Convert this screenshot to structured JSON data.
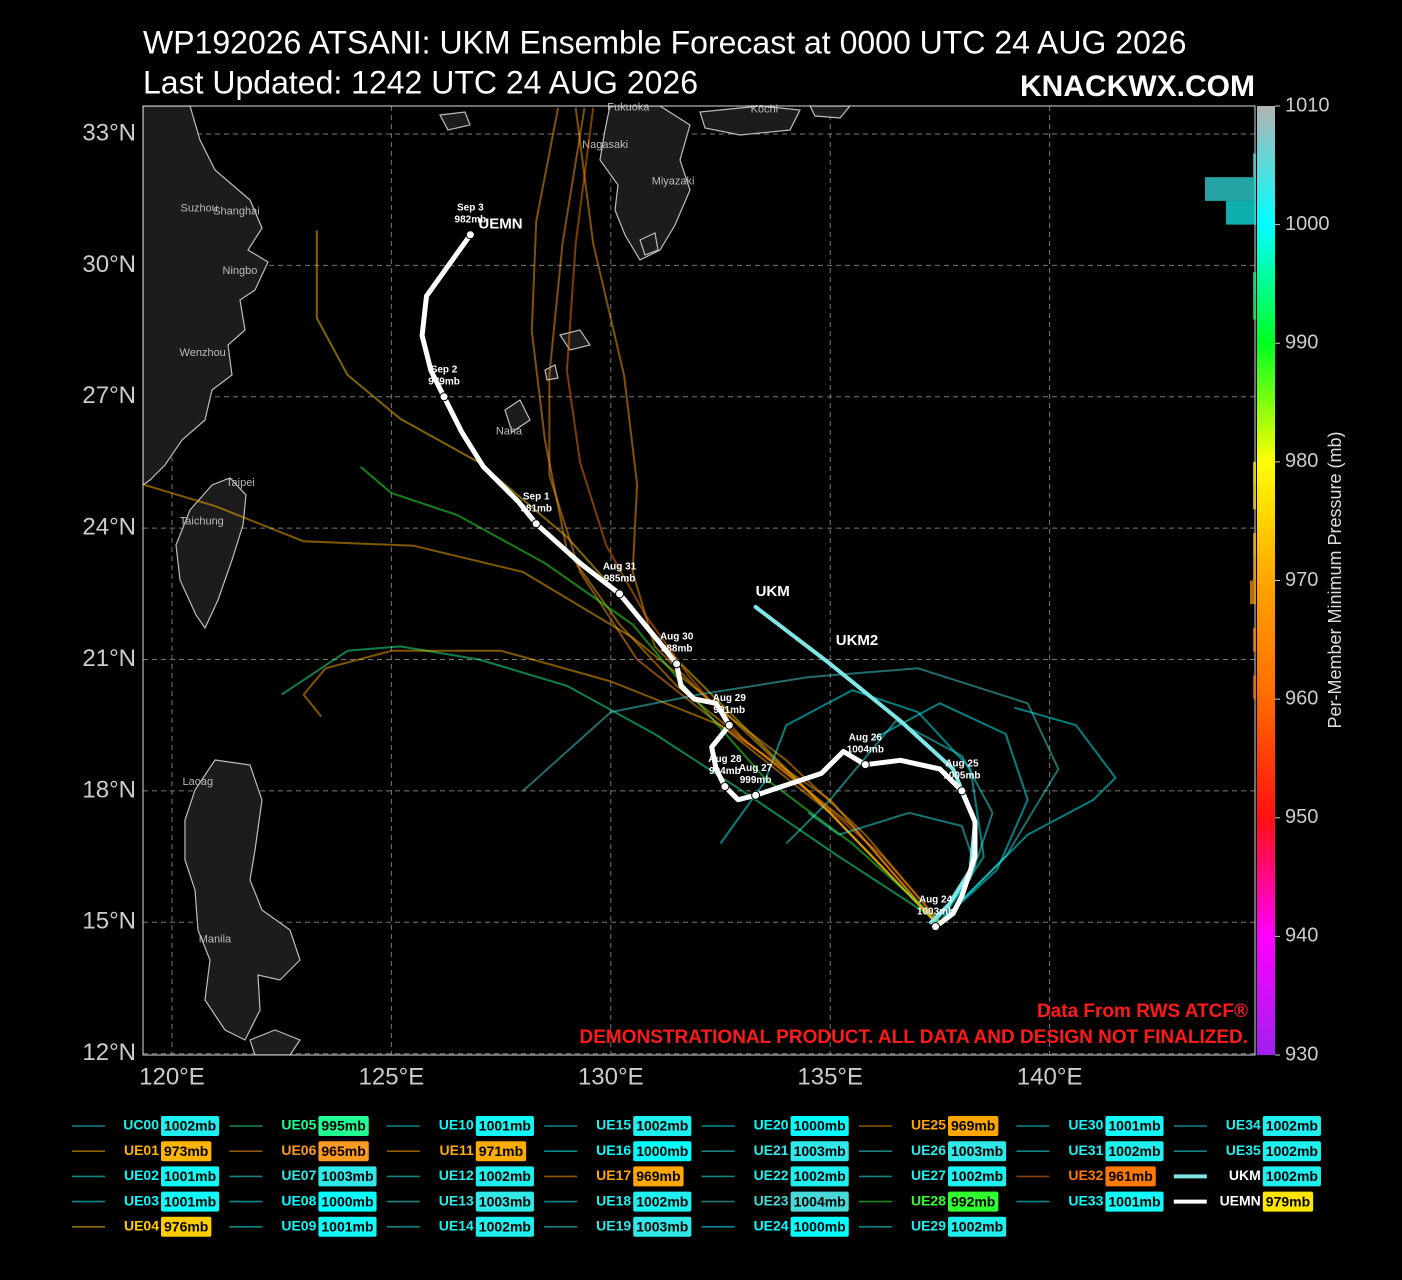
{
  "chart_data": {
    "type": "track-map",
    "title": "WP192026 ATSANI: UKM Ensemble Forecast at 0000 UTC 24 AUG 2026",
    "subtitle": "Last Updated: 1242 UTC 24 AUG 2026",
    "brand": "KNACKWX.COM",
    "source": "Data From RWS ATCF®",
    "disclaimer": "DEMONSTRATIONAL PRODUCT. ALL DATA AND DESIGN NOT FINALIZED.",
    "xlim": [
      119.34,
      144.68
    ],
    "ylim": [
      11.97,
      33.64
    ],
    "xticks": [
      {
        "value": 120,
        "label": "120°E"
      },
      {
        "value": 125,
        "label": "125°E"
      },
      {
        "value": 130,
        "label": "130°E"
      },
      {
        "value": 135,
        "label": "135°E"
      },
      {
        "value": 140,
        "label": "140°E"
      }
    ],
    "yticks": [
      {
        "value": 12,
        "label": "12°N"
      },
      {
        "value": 15,
        "label": "15°N"
      },
      {
        "value": 18,
        "label": "18°N"
      },
      {
        "value": 21,
        "label": "21°N"
      },
      {
        "value": 24,
        "label": "24°N"
      },
      {
        "value": 27,
        "label": "27°N"
      },
      {
        "value": 30,
        "label": "30°N"
      },
      {
        "value": 33,
        "label": "33°N"
      }
    ],
    "grid": true,
    "colorbar": {
      "label": "Per-Member Minimum Pressure (mb)",
      "lim": [
        930,
        1010
      ],
      "ticks": [
        930,
        940,
        950,
        960,
        970,
        980,
        990,
        1000,
        1010
      ],
      "colormap": [
        "#a020f0",
        "#ff00ff",
        "#ff1010",
        "#ff6a00",
        "#ffa500",
        "#ffff00",
        "#00ff20",
        "#00ffff",
        "#b4b4b4"
      ]
    },
    "cities": [
      {
        "name": "Fukuoka",
        "lon": 130.4,
        "lat": 33.6
      },
      {
        "name": "Kōchi",
        "lon": 133.5,
        "lat": 33.56
      },
      {
        "name": "Nagasaki",
        "lon": 129.87,
        "lat": 32.75
      },
      {
        "name": "Miyazaki",
        "lon": 131.42,
        "lat": 31.91
      },
      {
        "name": "Suzhou",
        "lon": 120.62,
        "lat": 31.3
      },
      {
        "name": "Shanghai",
        "lon": 121.47,
        "lat": 31.23
      },
      {
        "name": "Ningbo",
        "lon": 121.55,
        "lat": 29.87
      },
      {
        "name": "Wenzhou",
        "lon": 120.7,
        "lat": 28.0
      },
      {
        "name": "Taipei",
        "lon": 121.56,
        "lat": 25.03
      },
      {
        "name": "Taichung",
        "lon": 120.68,
        "lat": 24.15
      },
      {
        "name": "Naha",
        "lon": 127.68,
        "lat": 26.21
      },
      {
        "name": "Laoag",
        "lon": 120.59,
        "lat": 18.2
      },
      {
        "name": "Manila",
        "lon": 120.98,
        "lat": 14.6
      }
    ],
    "annotation": "UKM2",
    "members": [
      {
        "name": "UC00",
        "pressure": 1002,
        "pressure_label": "1002mb",
        "color": "#1ef0f0"
      },
      {
        "name": "UE01",
        "pressure": 973,
        "pressure_label": "973mb",
        "color": "#ffb400",
        "lon": [
          137.4,
          135.0,
          132.6,
          130.5,
          128.0,
          125.5,
          123.0,
          121.0,
          119.34
        ],
        "lat": [
          15.0,
          17.5,
          19.8,
          21.5,
          23.0,
          23.6,
          23.7,
          24.5,
          25.0
        ]
      },
      {
        "name": "UE02",
        "pressure": 1001,
        "pressure_label": "1001mb",
        "color": "#10f8f8"
      },
      {
        "name": "UE03",
        "pressure": 1001,
        "pressure_label": "1001mb",
        "color": "#10f8f8"
      },
      {
        "name": "UE04",
        "pressure": 976,
        "pressure_label": "976mb",
        "color": "#ffcc00",
        "lon": [
          137.4,
          134.5,
          131.5,
          129.0,
          127.0,
          125.2,
          124.0,
          123.3,
          123.3
        ],
        "lat": [
          15.0,
          18.0,
          21.0,
          23.8,
          25.5,
          26.5,
          27.5,
          28.8,
          30.8
        ]
      },
      {
        "name": "UE05",
        "pressure": 995,
        "pressure_label": "995mb",
        "color": "#20ff90",
        "lon": [
          137.5,
          135.2,
          133.0,
          131.0,
          129.0,
          127.0,
          125.2,
          124.0,
          122.5
        ],
        "lat": [
          15.0,
          16.5,
          18.0,
          19.3,
          20.4,
          21.0,
          21.3,
          21.2,
          20.2
        ]
      },
      {
        "name": "UE06",
        "pressure": 965,
        "pressure_label": "965mb",
        "color": "#ff9a20",
        "lon": [
          137.4,
          135.0,
          132.5,
          130.6,
          129.3,
          128.6,
          128.6,
          128.9,
          129.4
        ],
        "lat": [
          15.0,
          17.8,
          19.5,
          21.0,
          23.0,
          25.2,
          27.5,
          30.5,
          33.6
        ]
      },
      {
        "name": "UE07",
        "pressure": 1003,
        "pressure_label": "1003mb",
        "color": "#30e8e8"
      },
      {
        "name": "UE08",
        "pressure": 1000,
        "pressure_label": "1000mb",
        "color": "#00ffff",
        "lon": [
          137.5,
          138.8,
          139.5,
          139.0,
          137.5,
          136.0
        ],
        "lat": [
          15.0,
          16.2,
          17.8,
          19.3,
          20.0,
          19.2
        ]
      },
      {
        "name": "UE09",
        "pressure": 1001,
        "pressure_label": "1001mb",
        "color": "#10f8f8"
      },
      {
        "name": "UE10",
        "pressure": 1001,
        "pressure_label": "1001mb",
        "color": "#10f8f8"
      },
      {
        "name": "UE11",
        "pressure": 971,
        "pressure_label": "971mb",
        "color": "#ffac00",
        "lon": [
          137.4,
          135.0,
          132.5,
          130.0,
          127.5,
          125.0,
          123.5,
          123.0,
          123.4
        ],
        "lat": [
          15.0,
          17.5,
          19.5,
          20.5,
          21.2,
          21.2,
          20.8,
          20.2,
          19.7
        ]
      },
      {
        "name": "UE12",
        "pressure": 1002,
        "pressure_label": "1002mb",
        "color": "#1ef0f0"
      },
      {
        "name": "UE13",
        "pressure": 1003,
        "pressure_label": "1003mb",
        "color": "#30e8e8",
        "lon": [
          137.4,
          138.2,
          138.7,
          138.0,
          136.5,
          135.0,
          134.0
        ],
        "lat": [
          15.0,
          16.0,
          17.5,
          18.8,
          19.6,
          17.8,
          16.8
        ]
      },
      {
        "name": "UE14",
        "pressure": 1002,
        "pressure_label": "1002mb",
        "color": "#1ef0f0"
      },
      {
        "name": "UE15",
        "pressure": 1002,
        "pressure_label": "1002mb",
        "color": "#1ef0f0"
      },
      {
        "name": "UE16",
        "pressure": 1000,
        "pressure_label": "1000mb",
        "color": "#00ffff"
      },
      {
        "name": "UE17",
        "pressure": 969,
        "pressure_label": "969mb",
        "color": "#ffa600",
        "lon": [
          137.5,
          135.8,
          134.0,
          132.3,
          131.0,
          130.5,
          130.6,
          130.3,
          129.6,
          129.2
        ],
        "lat": [
          15.0,
          17.0,
          18.7,
          20.0,
          21.3,
          23.0,
          25.0,
          27.5,
          30.5,
          33.6
        ]
      },
      {
        "name": "UE18",
        "pressure": 1002,
        "pressure_label": "1002mb",
        "color": "#1ef0f0"
      },
      {
        "name": "UE19",
        "pressure": 1003,
        "pressure_label": "1003mb",
        "color": "#30e8e8"
      },
      {
        "name": "UE20",
        "pressure": 1000,
        "pressure_label": "1000mb",
        "color": "#00ffff",
        "lon": [
          137.5,
          138.5,
          138.2,
          137.0,
          135.5,
          134.0,
          133.5,
          132.5
        ],
        "lat": [
          15.0,
          16.5,
          18.5,
          19.8,
          20.3,
          19.5,
          18.2,
          16.8
        ]
      },
      {
        "name": "UE21",
        "pressure": 1003,
        "pressure_label": "1003mb",
        "color": "#30e8e8"
      },
      {
        "name": "UE22",
        "pressure": 1002,
        "pressure_label": "1002mb",
        "color": "#1ef0f0"
      },
      {
        "name": "UE23",
        "pressure": 1004,
        "pressure_label": "1004mb",
        "color": "#48d8d8",
        "lon": [
          137.5,
          139.0,
          140.2,
          139.5,
          137.0,
          134.5,
          132.0,
          130.0,
          128.0
        ],
        "lat": [
          15.0,
          16.5,
          18.5,
          20.0,
          20.8,
          20.6,
          20.2,
          19.8,
          18.0
        ]
      },
      {
        "name": "UE24",
        "pressure": 1000,
        "pressure_label": "1000mb",
        "color": "#00ffff",
        "lon": [
          137.5,
          138.5,
          139.5,
          141.0,
          141.5,
          140.6,
          139.2
        ],
        "lat": [
          15.0,
          16.0,
          17.0,
          17.8,
          18.3,
          19.5,
          19.9
        ]
      },
      {
        "name": "UE25",
        "pressure": 969,
        "pressure_label": "969mb",
        "color": "#ffa600",
        "lon": [
          137.4,
          135.5,
          133.5,
          131.5,
          130.2,
          129.0,
          128.5,
          128.2,
          128.3,
          128.8
        ],
        "lat": [
          15.0,
          17.2,
          18.8,
          20.4,
          21.8,
          23.5,
          26.0,
          28.5,
          31.0,
          33.6
        ]
      },
      {
        "name": "UE26",
        "pressure": 1003,
        "pressure_label": "1003mb",
        "color": "#30e8e8",
        "lon": [
          137.4,
          138.3,
          138.0,
          136.8,
          135.2,
          134.5
        ],
        "lat": [
          15.0,
          16.3,
          17.2,
          17.5,
          17.0,
          17.5
        ]
      },
      {
        "name": "UE27",
        "pressure": 1002,
        "pressure_label": "1002mb",
        "color": "#1ef0f0"
      },
      {
        "name": "UE28",
        "pressure": 992,
        "pressure_label": "992mb",
        "color": "#30ff30",
        "lon": [
          137.5,
          135.5,
          133.5,
          132.0,
          130.5,
          128.5,
          126.5,
          125.0,
          124.3
        ],
        "lat": [
          15.0,
          16.8,
          18.3,
          20.0,
          21.8,
          23.2,
          24.3,
          24.8,
          25.4
        ]
      },
      {
        "name": "UE29",
        "pressure": 1002,
        "pressure_label": "1002mb",
        "color": "#1ef0f0"
      },
      {
        "name": "UE30",
        "pressure": 1001,
        "pressure_label": "1001mb",
        "color": "#10f8f8"
      },
      {
        "name": "UE31",
        "pressure": 1002,
        "pressure_label": "1002mb",
        "color": "#1ef0f0"
      },
      {
        "name": "UE32",
        "pressure": 961,
        "pressure_label": "961mb",
        "color": "#ff7a00",
        "lon": [
          137.5,
          136.2,
          134.5,
          133.0,
          131.8,
          130.8,
          129.9,
          129.3,
          129.0,
          129.2,
          129.6
        ],
        "lat": [
          15.0,
          16.5,
          18.0,
          19.2,
          20.6,
          22.0,
          23.6,
          25.5,
          27.6,
          30.5,
          33.6
        ]
      },
      {
        "name": "UE33",
        "pressure": 1001,
        "pressure_label": "1001mb",
        "color": "#10f8f8"
      },
      {
        "name": "UE34",
        "pressure": 1002,
        "pressure_label": "1002mb",
        "color": "#1ef0f0"
      },
      {
        "name": "UE35",
        "pressure": 1002,
        "pressure_label": "1002mb",
        "color": "#1ef0f0"
      },
      {
        "name": "UKM",
        "pressure": 1002,
        "pressure_label": "1002mb",
        "color": "#1ef0f0",
        "line_color": "#7fe6e6",
        "label_color": "#ffffff",
        "lon": [
          133.3,
          135.0,
          136.6,
          137.8,
          138.3,
          138.2,
          137.7,
          137.3
        ],
        "lat": [
          22.2,
          20.9,
          19.6,
          18.5,
          17.3,
          16.2,
          15.4,
          15.0
        ]
      },
      {
        "name": "UEMN",
        "pressure": 979,
        "pressure_label": "979mb",
        "color": "#ffe600",
        "line_color": "#ffffff",
        "label_color": "#ffffff",
        "lon": [
          137.4,
          137.8,
          138.0,
          138.3,
          138.3,
          138.0,
          137.5,
          136.6,
          135.8,
          135.3,
          134.8,
          133.3,
          132.9,
          132.6,
          132.4,
          132.3,
          132.7,
          132.4,
          131.9,
          131.6,
          131.5,
          131.1,
          130.2,
          129.3,
          128.3,
          127.9,
          127.1,
          126.6,
          126.2,
          125.9,
          125.7,
          125.8,
          126.8
        ],
        "lat": [
          14.9,
          15.2,
          15.6,
          16.5,
          17.3,
          18.0,
          18.5,
          18.7,
          18.6,
          18.9,
          18.4,
          17.9,
          17.8,
          18.1,
          18.5,
          19.0,
          19.5,
          20.0,
          20.1,
          20.4,
          20.9,
          21.4,
          22.5,
          23.2,
          24.1,
          24.6,
          25.4,
          26.2,
          27.0,
          27.6,
          28.4,
          29.3,
          30.7
        ],
        "points": [
          {
            "date": "Aug 24",
            "pressure": 1003,
            "pressure_label": "1003mb",
            "lon": 137.4,
            "lat": 14.9
          },
          {
            "date": "Aug 25",
            "pressure": 1005,
            "pressure_label": "1005mb",
            "lon": 138.0,
            "lat": 18.0
          },
          {
            "date": "Aug 26",
            "pressure": 1004,
            "pressure_label": "1004mb",
            "lon": 135.8,
            "lat": 18.6
          },
          {
            "date": "Aug 27",
            "pressure": 999,
            "pressure_label": "999mb",
            "lon": 133.3,
            "lat": 17.9
          },
          {
            "date": "Aug 28",
            "pressure": 994,
            "pressure_label": "994mb",
            "lon": 132.6,
            "lat": 18.1
          },
          {
            "date": "Aug 29",
            "pressure": 991,
            "pressure_label": "991mb",
            "lon": 132.7,
            "lat": 19.5
          },
          {
            "date": "Aug 30",
            "pressure": 988,
            "pressure_label": "988mb",
            "lon": 131.5,
            "lat": 20.9
          },
          {
            "date": "Aug 31",
            "pressure": 985,
            "pressure_label": "985mb",
            "lon": 130.2,
            "lat": 22.5
          },
          {
            "date": "Sep 1",
            "pressure": 981,
            "pressure_label": "981mb",
            "lon": 128.3,
            "lat": 24.1
          },
          {
            "date": "Sep 2",
            "pressure": 979,
            "pressure_label": "979mb",
            "lon": 126.2,
            "lat": 27.0
          },
          {
            "date": "Sep 3",
            "pressure": 982,
            "pressure_label": "982mb",
            "lon": 126.8,
            "lat": 30.7
          }
        ]
      }
    ]
  }
}
